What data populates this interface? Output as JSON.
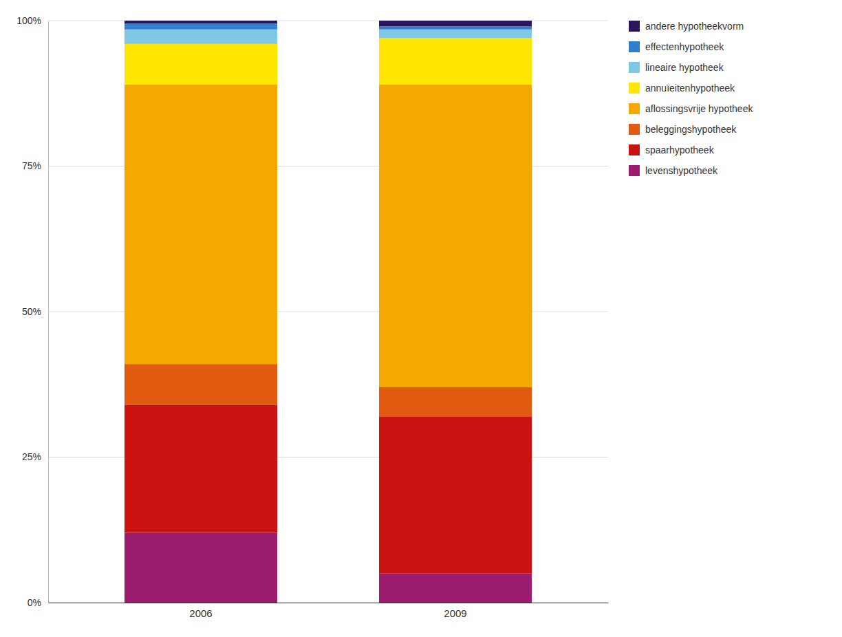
{
  "chart_data": {
    "type": "bar",
    "stacked": true,
    "categories": [
      "2006",
      "2009"
    ],
    "series": [
      {
        "name": "levenshypotheek",
        "color": "#9b1b6e",
        "values": [
          12.0,
          5.0
        ]
      },
      {
        "name": "spaarhypotheek",
        "color": "#cc1111",
        "values": [
          22.0,
          27.0
        ]
      },
      {
        "name": "beleggingshypotheek",
        "color": "#e05a10",
        "values": [
          7.0,
          5.0
        ]
      },
      {
        "name": "aflossingsvrije hypotheek",
        "color": "#f5a800",
        "values": [
          48.0,
          52.0
        ]
      },
      {
        "name": "annuïeitenhypotheek",
        "color": "#ffe600",
        "values": [
          7.0,
          8.0
        ]
      },
      {
        "name": "lineaire hypotheek",
        "color": "#7ec8e3",
        "values": [
          2.5,
          1.5
        ]
      },
      {
        "name": "effectenhypotheek",
        "color": "#2e7fcc",
        "values": [
          1.0,
          0.5
        ]
      },
      {
        "name": "andere hypotheekvorm",
        "color": "#2b1561",
        "values": [
          0.5,
          1.0
        ]
      }
    ],
    "ylim": [
      0,
      100
    ],
    "yticks": [
      {
        "value": 0,
        "label": "0%"
      },
      {
        "value": 25,
        "label": "25%"
      },
      {
        "value": 50,
        "label": "50%"
      },
      {
        "value": 75,
        "label": "75%"
      },
      {
        "value": 100,
        "label": "100%"
      }
    ],
    "grid": true,
    "legend": "right"
  }
}
